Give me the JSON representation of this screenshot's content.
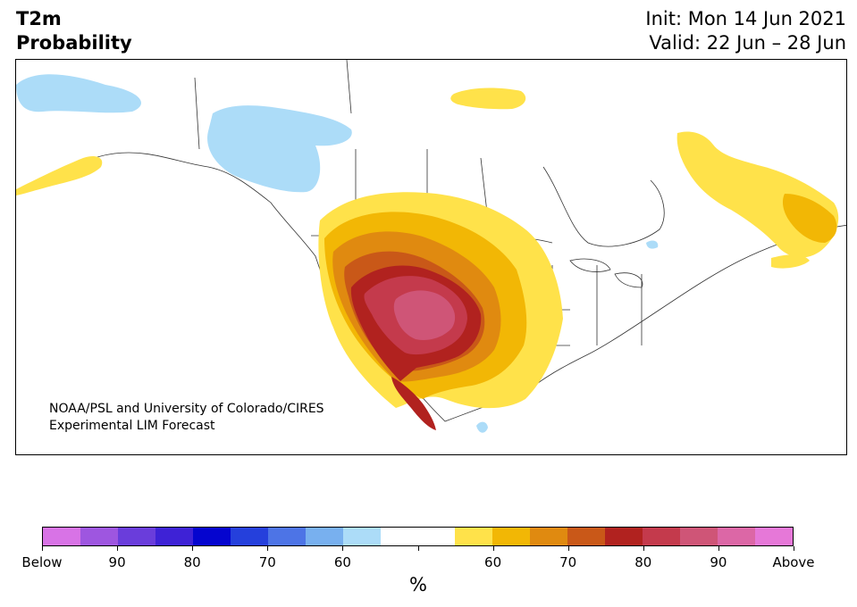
{
  "header": {
    "title_line1": "T2m",
    "title_line2": "Probability",
    "init": "Init: Mon 14 Jun 2021",
    "valid": "Valid: 22 Jun – 28 Jun"
  },
  "map": {
    "region": "North America",
    "credit_line1": "NOAA/PSL and University of Colorado/CIRES",
    "credit_line2": "Experimental LIM Forecast"
  },
  "colorbar": {
    "unit": "%",
    "colors": [
      "#d873e6",
      "#9e56e0",
      "#6a3ddb",
      "#3e22d6",
      "#0505cf",
      "#2540dc",
      "#4d74e6",
      "#78b0ef",
      "#acdcf8",
      "#ffffff",
      "#ffffff",
      "#ffe24a",
      "#f2b705",
      "#e08a10",
      "#c95818",
      "#b1221f",
      "#c43a4c",
      "#cf5577",
      "#dc67a6",
      "#e678d8"
    ],
    "tick_labels": [
      "Below",
      "90",
      "80",
      "70",
      "60",
      "",
      "60",
      "70",
      "80",
      "90",
      "Above"
    ]
  }
}
